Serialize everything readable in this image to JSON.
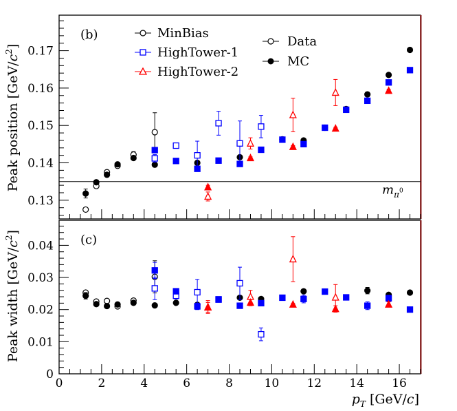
{
  "chart_data": [
    {
      "type": "scatter",
      "panel_label": "(b)",
      "ylabel": "Peak position [GeV/c²]",
      "ylabel_main": "Peak position [GeV/",
      "ylabel_c": "c",
      "ylabel_sup": "2",
      "ylabel_close": "]",
      "ylim": [
        0.125,
        0.1795
      ],
      "yticks": [
        0.13,
        0.14,
        0.15,
        0.16,
        0.17
      ],
      "ytick_labels": [
        "0.13",
        "0.14",
        "0.15",
        "0.16",
        "0.17"
      ],
      "reference_line": {
        "y": 0.135,
        "label": "m",
        "label_sub": "π",
        "label_sup": "0"
      },
      "legend": {
        "dataset_entries": [
          {
            "label": "MinBias",
            "color": "#000000",
            "marker": "open-circle"
          },
          {
            "label": "HighTower-1",
            "color": "#0000ff",
            "marker": "open-square"
          },
          {
            "label": "HighTower-2",
            "color": "#ff0000",
            "marker": "open-triangle"
          }
        ],
        "type_entries": [
          {
            "label": "Data",
            "marker": "open-circle"
          },
          {
            "label": "MC",
            "marker": "filled-circle"
          }
        ]
      },
      "series": [
        {
          "name": "MinBias Data",
          "color": "#000000",
          "marker": "open-circle",
          "x": [
            1.25,
            1.75,
            2.25,
            2.75,
            3.5,
            4.5
          ],
          "y": [
            0.1275,
            0.1338,
            0.1375,
            0.1392,
            0.1422,
            0.1482
          ],
          "err": [
            0,
            0.0005,
            0.0005,
            0.0004,
            0.0008,
            0.0052
          ]
        },
        {
          "name": "MinBias MC",
          "color": "#000000",
          "marker": "filled-circle",
          "x": [
            1.25,
            1.75,
            2.25,
            2.75,
            3.5,
            4.5,
            6.5,
            8.5,
            10.5,
            11.5,
            12.5,
            13.5,
            14.5,
            15.5,
            16.5
          ],
          "y": [
            0.1318,
            0.1348,
            0.1368,
            0.1396,
            0.1413,
            0.1395,
            0.14,
            0.1415,
            0.1463,
            0.146,
            0.1494,
            0.1544,
            0.1583,
            0.1635,
            0.1702
          ],
          "err": [
            0.0012,
            0.0006,
            0.0004,
            0.0004,
            0.0004,
            0.0006,
            0.0005,
            0.0004,
            0.0004,
            0.0004,
            0.0004,
            0.0004,
            0.0006,
            0.0005,
            0.0004
          ]
        },
        {
          "name": "HighTower-1 Data",
          "color": "#0000ff",
          "marker": "open-square",
          "x": [
            4.5,
            5.5,
            6.5,
            7.5,
            8.5,
            9.5
          ],
          "y": [
            0.1412,
            0.1446,
            0.142,
            0.1506,
            0.1452,
            0.1497
          ],
          "err": [
            0.001,
            0.0005,
            0.0038,
            0.0032,
            0.006,
            0.003
          ]
        },
        {
          "name": "HighTower-1 MC",
          "color": "#0000ff",
          "marker": "filled-square",
          "x": [
            4.5,
            5.5,
            6.5,
            7.5,
            8.5,
            9.5,
            10.5,
            11.5,
            12.5,
            13.5,
            14.5,
            15.5,
            16.5
          ],
          "y": [
            0.1434,
            0.1405,
            0.1384,
            0.1406,
            0.1397,
            0.1435,
            0.1462,
            0.145,
            0.1494,
            0.1542,
            0.1566,
            0.1615,
            0.1648
          ],
          "err": [
            0.0004,
            0.0004,
            0.0006,
            0.0004,
            0.0004,
            0.0004,
            0.0004,
            0.0004,
            0.0004,
            0.0004,
            0.0004,
            0.0004,
            0.0004
          ]
        },
        {
          "name": "HighTower-2 Data",
          "color": "#ff0000",
          "marker": "open-triangle",
          "x": [
            7.0,
            9.0,
            11.0,
            13.0
          ],
          "y": [
            0.131,
            0.1452,
            0.1528,
            0.1588
          ],
          "err": [
            0.0012,
            0.0015,
            0.0045,
            0.0035
          ]
        },
        {
          "name": "HighTower-2 MC",
          "color": "#ff0000",
          "marker": "filled-triangle",
          "x": [
            7.0,
            9.0,
            11.0,
            13.0,
            15.5
          ],
          "y": [
            0.1335,
            0.1413,
            0.1443,
            0.1492,
            0.1593
          ],
          "err": [
            0.0005,
            0.0003,
            0.0003,
            0.0003,
            0.0004
          ]
        }
      ]
    },
    {
      "type": "scatter",
      "panel_label": "(c)",
      "ylabel": "Peak width [GeV/c²]",
      "ylabel_main": "Peak width [GeV/",
      "ylabel_c": "c",
      "ylabel_sup": "2",
      "ylabel_close": "]",
      "xlabel": "p_T [GeV/c]",
      "xlabel_p": "p",
      "xlabel_sub": "T",
      "xlabel_unit": " [GeV/",
      "xlabel_c": "c",
      "xlabel_close": "]",
      "xlim": [
        0,
        17
      ],
      "xticks": [
        0,
        2,
        4,
        6,
        8,
        10,
        12,
        14,
        16
      ],
      "xtick_labels": [
        "0",
        "2",
        "4",
        "6",
        "8",
        "10",
        "12",
        "14",
        "16"
      ],
      "ylim": [
        0,
        0.0478
      ],
      "yticks": [
        0,
        0.01,
        0.02,
        0.03,
        0.04
      ],
      "ytick_labels": [
        "0",
        "0.01",
        "0.02",
        "0.03",
        "0.04"
      ],
      "series": [
        {
          "name": "MinBias Data",
          "color": "#000000",
          "marker": "open-circle",
          "x": [
            1.25,
            1.75,
            2.25,
            2.75,
            3.5,
            4.5
          ],
          "y": [
            0.0253,
            0.0225,
            0.0227,
            0.021,
            0.0228,
            0.0302
          ],
          "err": [
            0.0004,
            0.0004,
            0.0003,
            0.0003,
            0.0006,
            0.005
          ]
        },
        {
          "name": "MinBias MC",
          "color": "#000000",
          "marker": "filled-circle",
          "x": [
            1.25,
            1.75,
            2.25,
            2.75,
            3.5,
            4.5,
            5.5,
            6.5,
            8.5,
            9.5,
            11.5,
            14.5,
            15.5,
            16.5
          ],
          "y": [
            0.0243,
            0.0217,
            0.0211,
            0.0216,
            0.0221,
            0.0213,
            0.0221,
            0.0215,
            0.0237,
            0.0233,
            0.0257,
            0.0259,
            0.0246,
            0.0253
          ],
          "err": [
            0.001,
            0.0004,
            0.0003,
            0.0003,
            0.0004,
            0.0003,
            0.0003,
            0.0003,
            0.0003,
            0.0003,
            0.0003,
            0.001,
            0.0003,
            0.0003
          ]
        },
        {
          "name": "HighTower-1 Data",
          "color": "#0000ff",
          "marker": "open-square",
          "x": [
            4.5,
            5.5,
            6.5,
            7.5,
            8.5,
            9.5
          ],
          "y": [
            0.0266,
            0.0243,
            0.0254,
            0.0232,
            0.0282,
            0.0123
          ],
          "err": [
            0.0035,
            0.001,
            0.004,
            0.0005,
            0.005,
            0.002
          ]
        },
        {
          "name": "HighTower-1 MC",
          "color": "#0000ff",
          "marker": "filled-square",
          "x": [
            4.5,
            5.5,
            6.5,
            7.5,
            8.5,
            9.5,
            10.5,
            11.5,
            12.5,
            13.5,
            14.5,
            15.5,
            16.5
          ],
          "y": [
            0.0322,
            0.0257,
            0.021,
            0.0231,
            0.0212,
            0.022,
            0.0237,
            0.0233,
            0.0256,
            0.0238,
            0.0212,
            0.0235,
            0.02
          ],
          "err": [
            0.0025,
            0.0004,
            0.001,
            0.0004,
            0.0003,
            0.0004,
            0.0004,
            0.0012,
            0.0004,
            0.0004,
            0.0012,
            0.001,
            0.0004
          ]
        },
        {
          "name": "HighTower-2 Data",
          "color": "#ff0000",
          "marker": "open-triangle",
          "x": [
            7.0,
            9.0,
            11.0,
            13.0
          ],
          "y": [
            0.0208,
            0.024,
            0.0357,
            0.0238
          ],
          "err": [
            0.002,
            0.002,
            0.007,
            0.004
          ]
        },
        {
          "name": "HighTower-2 MC",
          "color": "#ff0000",
          "marker": "filled-triangle",
          "x": [
            7.0,
            9.0,
            11.0,
            13.0,
            15.5
          ],
          "y": [
            0.0207,
            0.0222,
            0.0216,
            0.0202,
            0.0216
          ],
          "err": [
            0.0015,
            0.001,
            0.0003,
            0.001,
            0.0008
          ]
        }
      ]
    }
  ]
}
